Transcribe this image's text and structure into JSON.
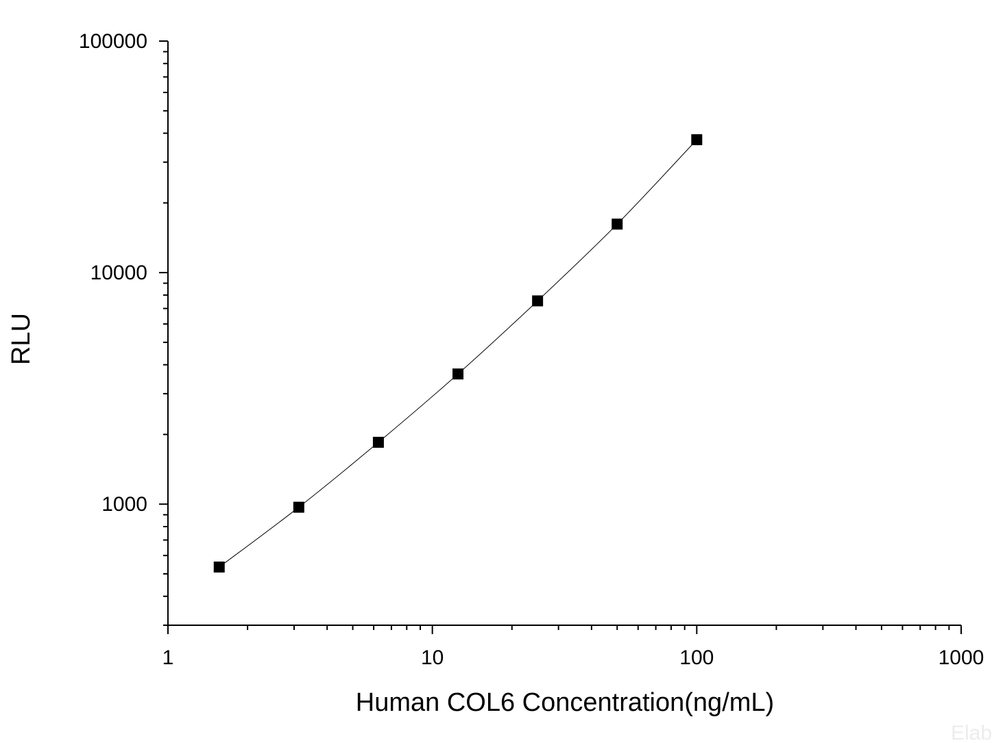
{
  "chart_data": {
    "type": "scatter",
    "title": "",
    "xlabel": "Human COL6 Concentration(ng/mL)",
    "ylabel": "RLU",
    "x_scale": "log",
    "y_scale": "log",
    "xlim": [
      1,
      1000
    ],
    "ylim": [
      300,
      100000
    ],
    "x_tick_labels": [
      "1",
      "10",
      "100",
      "1000"
    ],
    "y_tick_labels": [
      "1000",
      "10000",
      "100000"
    ],
    "grid": false,
    "legend": "none",
    "series": [
      {
        "x": [
          1.5625,
          3.125,
          6.25,
          12.5,
          25,
          50,
          100
        ],
        "y": [
          535,
          970,
          1850,
          3650,
          7550,
          16200,
          37500
        ],
        "marker": "square",
        "line": "smooth"
      }
    ],
    "watermark": "Elab",
    "colors": {
      "marker": "#000000",
      "line": "#000000",
      "axis": "#000000",
      "background": "#ffffff",
      "watermark": "#ececec"
    }
  }
}
